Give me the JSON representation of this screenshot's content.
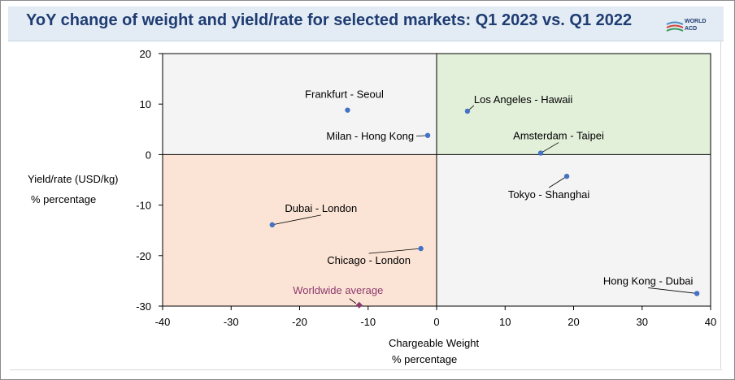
{
  "header": {
    "title": "YoY change of weight and yield/rate for selected markets: Q1 2023 vs. Q1 2022",
    "logo_line1": "WORLD",
    "logo_line2": "ACD"
  },
  "colors": {
    "title": "#1f3c73",
    "point": "#4472c4",
    "average": "#8e3a6e",
    "quadrant_top_left": "#f4f4f4",
    "quadrant_top_right": "#e2efd9",
    "quadrant_bottom_left": "#fbe4d5",
    "quadrant_bottom_right": "#f4f4f4"
  },
  "chart_data": {
    "type": "scatter",
    "title": "YoY change of weight and yield/rate for selected markets: Q1 2023 vs. Q1 2022",
    "xlabel": "Chargeable Weight",
    "xlabel_sub": "% percentage",
    "ylabel": "Yield/rate (USD/kg)",
    "ylabel_sub": "% percentage",
    "xlim": [
      -40,
      40
    ],
    "ylim": [
      -30,
      20
    ],
    "xticks": [
      -40,
      -30,
      -20,
      -10,
      0,
      10,
      20,
      30,
      40
    ],
    "yticks": [
      -30,
      -20,
      -10,
      0,
      10,
      20
    ],
    "grid": false,
    "points": [
      {
        "label": "Frankfurt - Seoul",
        "x": -13,
        "y": 8.8
      },
      {
        "label": "Milan - Hong Kong",
        "x": -1.3,
        "y": 3.8
      },
      {
        "label": "Los Angeles - Hawaii",
        "x": 4.5,
        "y": 8.6
      },
      {
        "label": "Amsterdam - Taipei",
        "x": 15.2,
        "y": 0.3
      },
      {
        "label": "Tokyo - Shanghai",
        "x": 19,
        "y": -4.3
      },
      {
        "label": "Dubai - London",
        "x": -24,
        "y": -13.9
      },
      {
        "label": "Chicago - London",
        "x": -2.3,
        "y": -18.6
      },
      {
        "label": "Hong Kong - Dubai",
        "x": 38,
        "y": -27.5
      }
    ],
    "average": {
      "label": "Worldwide average",
      "x": -11.3,
      "y": -29.8
    }
  }
}
